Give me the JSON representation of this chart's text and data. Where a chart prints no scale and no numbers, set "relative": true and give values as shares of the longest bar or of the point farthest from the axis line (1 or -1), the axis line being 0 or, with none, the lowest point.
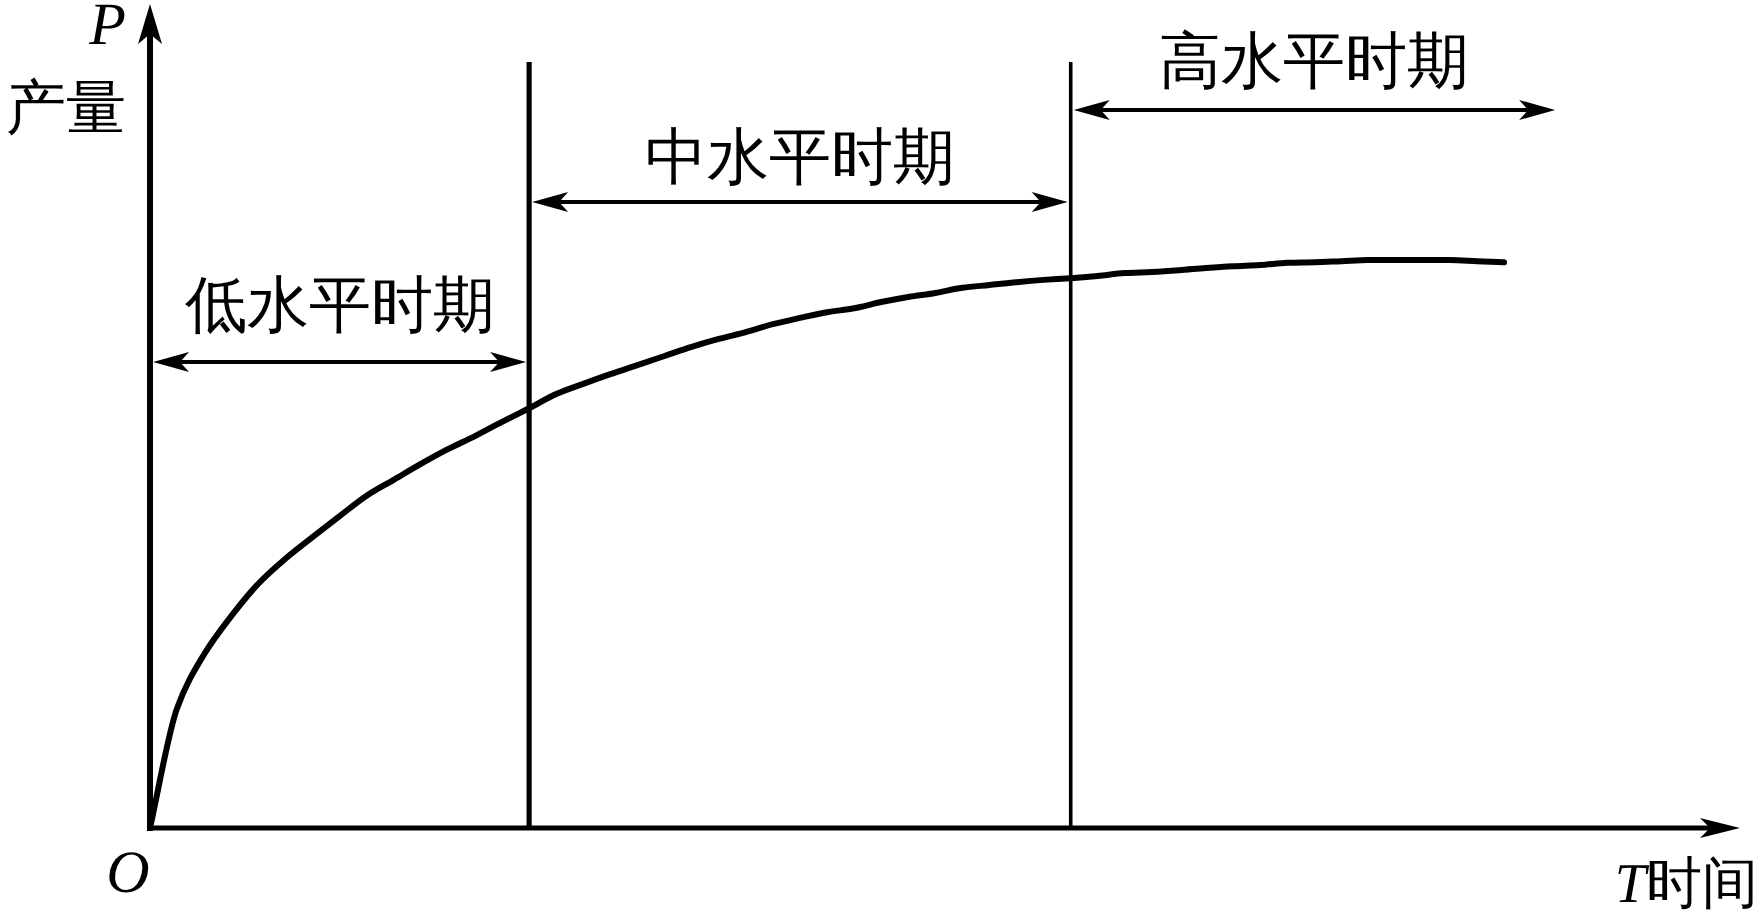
{
  "chart_data": {
    "type": "line",
    "relative": true,
    "ylabel": "P\n产量",
    "xlabel": "T时间",
    "annotations": [
      "低水平时期",
      "中水平时期",
      "高水平时期",
      "O"
    ],
    "categories": [
      null,
      null,
      null,
      null,
      null,
      null,
      null,
      null,
      null,
      null,
      null,
      null,
      null,
      null,
      null,
      null,
      null,
      null,
      null,
      null,
      null,
      null,
      null,
      null,
      null,
      null,
      null,
      null,
      null,
      null,
      null,
      null,
      null,
      null,
      null,
      null,
      null,
      null,
      null,
      null,
      null,
      null,
      null,
      null,
      null,
      null,
      null,
      null,
      null,
      null,
      null
    ],
    "series": [
      {
        "color": "#000000",
        "values": [
          0,
          0.211,
          0.306,
          0.373,
          0.43,
          0.474,
          0.512,
          0.549,
          0.585,
          0.613,
          0.641,
          0.667,
          0.69,
          0.715,
          0.739,
          0.764,
          0.782,
          0.799,
          0.815,
          0.831,
          0.847,
          0.861,
          0.873,
          0.887,
          0.898,
          0.908,
          0.915,
          0.926,
          0.935,
          0.942,
          0.951,
          0.956,
          0.961,
          0.965,
          0.968,
          0.972,
          0.977,
          0.979,
          0.982,
          0.986,
          0.989,
          0.991,
          0.995,
          0.996,
          0.998,
          1,
          1,
          1,
          1,
          0.998,
          0.996
        ]
      }
    ]
  }
}
